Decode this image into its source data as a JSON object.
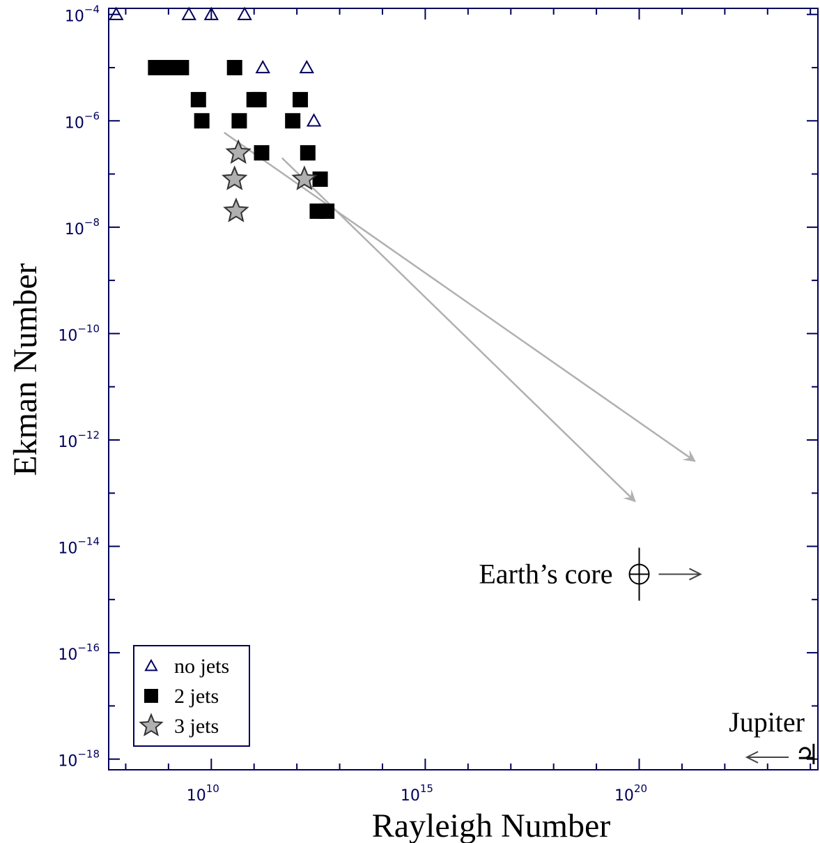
{
  "chart_data": {
    "type": "scatter",
    "xlabel": "Rayleigh Number",
    "ylabel": "Ekman Number",
    "x_scale": "log",
    "y_scale": "log",
    "xlim": [
      40000000.0,
      1.5e+24
    ],
    "ylim": [
      6.3e-19,
      0.00013
    ],
    "x_ticks": [
      {
        "value": 10000000000.0,
        "label": "10",
        "exp": "10"
      },
      {
        "value": 1000000000000000.0,
        "label": "10",
        "exp": "15"
      },
      {
        "value": 1e+20,
        "label": "10",
        "exp": "20"
      }
    ],
    "y_ticks": [
      {
        "value": 0.0001,
        "label": "10",
        "exp": "−4"
      },
      {
        "value": 1e-06,
        "label": "10",
        "exp": "−6"
      },
      {
        "value": 1e-08,
        "label": "10",
        "exp": "−8"
      },
      {
        "value": 1e-10,
        "label": "10",
        "exp": "−10"
      },
      {
        "value": 1e-12,
        "label": "10",
        "exp": "−12"
      },
      {
        "value": 1e-14,
        "label": "10",
        "exp": "−14"
      },
      {
        "value": 1e-16,
        "label": "10",
        "exp": "−16"
      },
      {
        "value": 1e-18,
        "label": "10",
        "exp": "−18"
      }
    ],
    "series": [
      {
        "name": "no jets",
        "marker": "triangle",
        "color": "#00005c",
        "points": [
          {
            "x": 60000000.0,
            "y": 0.0001
          },
          {
            "x": 3000000000.0,
            "y": 0.0001
          },
          {
            "x": 10000000000.0,
            "y": 0.0001
          },
          {
            "x": 60000000000.0,
            "y": 0.0001
          },
          {
            "x": 160000000000.0,
            "y": 1e-05
          },
          {
            "x": 1700000000000.0,
            "y": 1e-05
          },
          {
            "x": 2500000000000.0,
            "y": 1e-06
          }
        ]
      },
      {
        "name": "2 jets",
        "marker": "square",
        "color": "#000000",
        "points": [
          {
            "x": 500000000.0,
            "y": 1e-05
          },
          {
            "x": 1000000000.0,
            "y": 1e-05
          },
          {
            "x": 2000000000.0,
            "y": 1e-05
          },
          {
            "x": 35000000000.0,
            "y": 1e-05
          },
          {
            "x": 5000000000.0,
            "y": 2.5e-06
          },
          {
            "x": 6000000000.0,
            "y": 1e-06
          },
          {
            "x": 100000000000.0,
            "y": 2.5e-06
          },
          {
            "x": 130000000000.0,
            "y": 2.5e-06
          },
          {
            "x": 1200000000000.0,
            "y": 2.5e-06
          },
          {
            "x": 45000000000.0,
            "y": 1e-06
          },
          {
            "x": 800000000000.0,
            "y": 1e-06
          },
          {
            "x": 1800000000000.0,
            "y": 2.5e-07
          },
          {
            "x": 150000000000.0,
            "y": 2.5e-07
          },
          {
            "x": 3500000000000.0,
            "y": 8e-08
          },
          {
            "x": 3000000000000.0,
            "y": 2e-08
          },
          {
            "x": 5000000000000.0,
            "y": 2e-08
          }
        ]
      },
      {
        "name": "3 jets",
        "marker": "star",
        "color": "#b0b0b0",
        "points": [
          {
            "x": 43000000000.0,
            "y": 2.5e-07
          },
          {
            "x": 35000000000.0,
            "y": 8e-08
          },
          {
            "x": 38000000000.0,
            "y": 2e-08
          },
          {
            "x": 1500000000000.0,
            "y": 8e-08
          }
        ]
      }
    ],
    "trend_arrows": [
      {
        "from": [
          20000000000.0,
          6e-07
        ],
        "to": [
          2e+21,
          4e-13
        ]
      },
      {
        "from": [
          450000000000.0,
          2e-07
        ],
        "to": [
          8e+19,
          7e-14
        ]
      }
    ],
    "annotations": [
      {
        "text": "Earth’s core",
        "x": 1e+20,
        "y": 3e-15,
        "symbol": "⊕"
      },
      {
        "text": "Jupiter",
        "x": 3e+23,
        "y": 1e-18,
        "symbol": "♃"
      }
    ],
    "legend": {
      "placement": "bottom-left",
      "entries": [
        "no jets",
        "2 jets",
        "3 jets"
      ]
    },
    "grid": false
  }
}
